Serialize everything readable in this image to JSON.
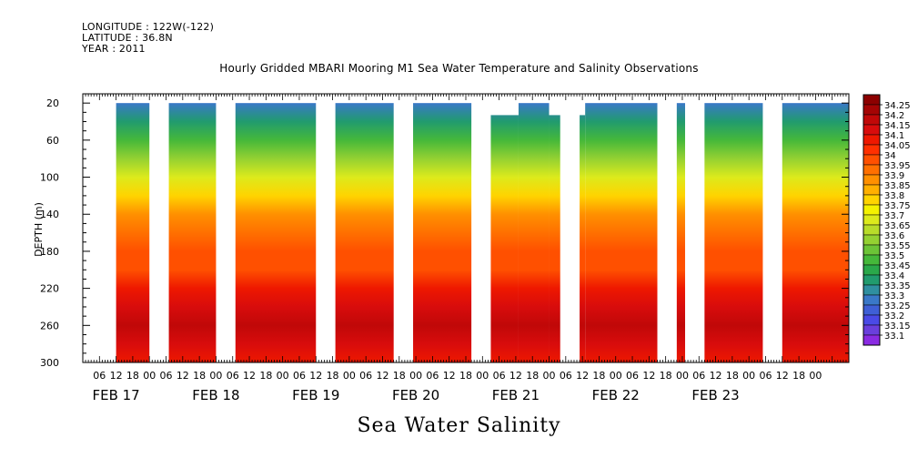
{
  "header": {
    "longitude": "LONGITUDE : 122W(-122)",
    "latitude": "LATITUDE : 36.8N",
    "year": "YEAR : 2011"
  },
  "footer_label": "Sea Water Salinity",
  "colors": {
    "colormap": [
      "#cc00ff",
      "#8a2be2",
      "#6a3fdc",
      "#4a4ae6",
      "#3f5fd6",
      "#3a78c8",
      "#2f8fa0",
      "#219b6e",
      "#2aa84a",
      "#45b83a",
      "#6cc437",
      "#94d132",
      "#b8dc2a",
      "#dcea1c",
      "#f4f200",
      "#ffd400",
      "#ffb000",
      "#ff9000",
      "#ff7000",
      "#ff5000",
      "#ff3000",
      "#ee1800",
      "#d80c0c",
      "#c00808",
      "#a40404",
      "#8c0000"
    ]
  },
  "chart_data": {
    "type": "heatmap",
    "title": "Hourly Gridded MBARI Mooring M1 Sea Water Temperature and Salinity Observations",
    "ylabel": "DEPTH (m)",
    "xlabel": "",
    "ylim": [
      300,
      10
    ],
    "y_ticks": [
      20,
      60,
      100,
      140,
      180,
      220,
      260,
      300
    ],
    "x_range_hours": [
      -18,
      258
    ],
    "x_hour_ticks": [
      {
        "t": -12,
        "label": "06"
      },
      {
        "t": -6,
        "label": "12"
      },
      {
        "t": 0,
        "label": "18"
      },
      {
        "t": 6,
        "label": "00"
      },
      {
        "t": 12,
        "label": "06"
      },
      {
        "t": 18,
        "label": "12"
      },
      {
        "t": 24,
        "label": "18"
      },
      {
        "t": 30,
        "label": "00"
      },
      {
        "t": 36,
        "label": "06"
      },
      {
        "t": 42,
        "label": "12"
      },
      {
        "t": 48,
        "label": "18"
      },
      {
        "t": 54,
        "label": "00"
      },
      {
        "t": 60,
        "label": "06"
      },
      {
        "t": 66,
        "label": "12"
      },
      {
        "t": 72,
        "label": "18"
      },
      {
        "t": 78,
        "label": "00"
      },
      {
        "t": 84,
        "label": "06"
      },
      {
        "t": 90,
        "label": "12"
      },
      {
        "t": 96,
        "label": "18"
      },
      {
        "t": 102,
        "label": "00"
      },
      {
        "t": 108,
        "label": "06"
      },
      {
        "t": 114,
        "label": "12"
      },
      {
        "t": 120,
        "label": "18"
      },
      {
        "t": 126,
        "label": "00"
      },
      {
        "t": 132,
        "label": "06"
      },
      {
        "t": 138,
        "label": "12"
      },
      {
        "t": 144,
        "label": "18"
      },
      {
        "t": 150,
        "label": "00"
      },
      {
        "t": 156,
        "label": "06"
      },
      {
        "t": 162,
        "label": "12"
      },
      {
        "t": 168,
        "label": "18"
      },
      {
        "t": 174,
        "label": "00"
      },
      {
        "t": 180,
        "label": "06"
      },
      {
        "t": 186,
        "label": "12"
      },
      {
        "t": 192,
        "label": "18"
      },
      {
        "t": 198,
        "label": "00"
      },
      {
        "t": 204,
        "label": "06"
      },
      {
        "t": 210,
        "label": "12"
      },
      {
        "t": 216,
        "label": "18"
      },
      {
        "t": 222,
        "label": "00"
      },
      {
        "t": 228,
        "label": "06"
      },
      {
        "t": 234,
        "label": "12"
      },
      {
        "t": 240,
        "label": "18"
      },
      {
        "t": 246,
        "label": "00"
      }
    ],
    "date_labels": [
      {
        "t": -6,
        "label": "FEB 17"
      },
      {
        "t": 30,
        "label": "FEB 18"
      },
      {
        "t": 66,
        "label": "FEB 19"
      },
      {
        "t": 102,
        "label": "FEB 20"
      },
      {
        "t": 138,
        "label": "FEB 21"
      },
      {
        "t": 174,
        "label": "FEB 22"
      },
      {
        "t": 210,
        "label": "FEB 23"
      }
    ],
    "colorbar_levels": [
      34.25,
      34.2,
      34.15,
      34.1,
      34.05,
      34,
      33.95,
      33.9,
      33.85,
      33.8,
      33.75,
      33.7,
      33.65,
      33.6,
      33.55,
      33.5,
      33.45,
      33.4,
      33.35,
      33.3,
      33.25,
      33.2,
      33.15,
      33.1
    ],
    "data_segments": [
      {
        "start": -6,
        "end": 6,
        "top": 20
      },
      {
        "start": 13,
        "end": 30,
        "top": 20
      },
      {
        "start": 37,
        "end": 66,
        "top": 20
      },
      {
        "start": 73,
        "end": 94,
        "top": 20
      },
      {
        "start": 101,
        "end": 122,
        "top": 20
      },
      {
        "start": 129,
        "end": 139,
        "top": 33
      },
      {
        "start": 139,
        "end": 150,
        "top": 20
      },
      {
        "start": 150,
        "end": 154,
        "top": 33
      },
      {
        "start": 161,
        "end": 163,
        "top": 33
      },
      {
        "start": 163,
        "end": 189,
        "top": 20
      },
      {
        "start": 196,
        "end": 199,
        "top": 20
      },
      {
        "start": 206,
        "end": 227,
        "top": 20
      },
      {
        "start": 234,
        "end": 258,
        "top": 20
      }
    ],
    "salinity_profile": [
      {
        "depth": 20,
        "value": 33.33
      },
      {
        "depth": 40,
        "value": 33.42
      },
      {
        "depth": 60,
        "value": 33.52
      },
      {
        "depth": 80,
        "value": 33.62
      },
      {
        "depth": 100,
        "value": 33.72
      },
      {
        "depth": 120,
        "value": 33.82
      },
      {
        "depth": 140,
        "value": 33.94
      },
      {
        "depth": 160,
        "value": 33.99
      },
      {
        "depth": 180,
        "value": 34.01
      },
      {
        "depth": 200,
        "value": 34.04
      },
      {
        "depth": 220,
        "value": 34.1
      },
      {
        "depth": 240,
        "value": 34.17
      },
      {
        "depth": 260,
        "value": 34.2
      },
      {
        "depth": 280,
        "value": 34.16
      },
      {
        "depth": 300,
        "value": 34.12
      }
    ]
  }
}
